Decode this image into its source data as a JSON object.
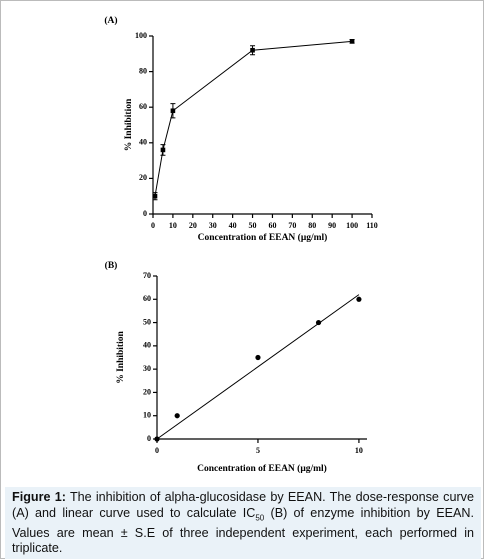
{
  "chart_data": [
    {
      "type": "line",
      "label": "(A)",
      "x_label": "Concentration of EEAN (μg/ml)",
      "y_label": "% Inhibition",
      "xlim": [
        0,
        110
      ],
      "xticks": [
        0,
        10,
        20,
        30,
        40,
        50,
        60,
        70,
        80,
        90,
        100,
        110
      ],
      "ylim": [
        0,
        100
      ],
      "yticks": [
        0,
        20,
        40,
        60,
        80,
        100
      ],
      "series": [
        {
          "color": "#000000",
          "marker": "square",
          "x": [
            1,
            5,
            10,
            50,
            100
          ],
          "values": [
            10,
            36,
            58,
            92,
            97
          ],
          "errors": [
            2,
            3,
            4,
            2.5,
            1
          ]
        }
      ]
    },
    {
      "type": "scatter",
      "label": "(B)",
      "x_label": "Concentration of EEAN (μg/ml)",
      "y_label": "% Inhibition",
      "xlim": [
        0,
        10.4
      ],
      "xticks": [
        0,
        5,
        10
      ],
      "ylim": [
        0,
        70
      ],
      "yticks": [
        0,
        10,
        20,
        30,
        40,
        50,
        60,
        70
      ],
      "series": [
        {
          "color": "#000000",
          "marker": "circle",
          "x": [
            0,
            1,
            5,
            8,
            10
          ],
          "values": [
            0,
            10,
            35,
            50,
            60
          ]
        },
        {
          "color": "#000000",
          "marker": "none",
          "x": [
            0,
            10
          ],
          "values": [
            0,
            62
          ]
        }
      ]
    }
  ],
  "caption": {
    "label": "Figure 1:",
    "text_before": "The inhibition of alpha-glucosidase by EEAN. The dose-response curve (A) and linear curve used to calculate IC",
    "subscript": "50",
    "text_after": "(B) of enzyme inhibition by EEAN. Values are mean ± S.E of three independent experiment, each performed in triplicate."
  }
}
